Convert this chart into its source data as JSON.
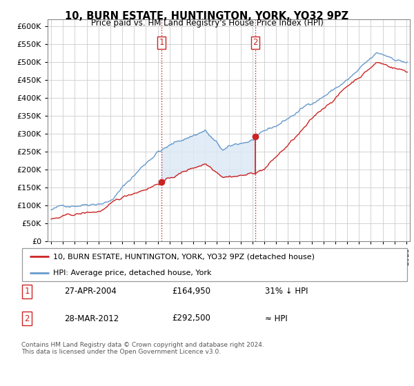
{
  "title": "10, BURN ESTATE, HUNTINGTON, YORK, YO32 9PZ",
  "subtitle": "Price paid vs. HM Land Registry's House Price Index (HPI)",
  "ylim": [
    0,
    620000
  ],
  "xlim_start": 1994.7,
  "xlim_end": 2025.3,
  "hpi_color": "#6699cc",
  "price_color": "#cc2222",
  "vline_color": "#cc2222",
  "bg_color": "#dce9f5",
  "legend_entry1": "10, BURN ESTATE, HUNTINGTON, YORK, YO32 9PZ (detached house)",
  "legend_entry2": "HPI: Average price, detached house, York",
  "annotation1_date": "27-APR-2004",
  "annotation1_price": "£164,950",
  "annotation1_hpi": "31% ↓ HPI",
  "annotation2_date": "28-MAR-2012",
  "annotation2_price": "£292,500",
  "annotation2_hpi": "≈ HPI",
  "copyright": "Contains HM Land Registry data © Crown copyright and database right 2024.\nThis data is licensed under the Open Government Licence v3.0.",
  "sale1_x": 2004.32,
  "sale1_y": 164950,
  "sale2_x": 2012.24,
  "sale2_y": 292500,
  "sale2_line_bottom": 200000
}
